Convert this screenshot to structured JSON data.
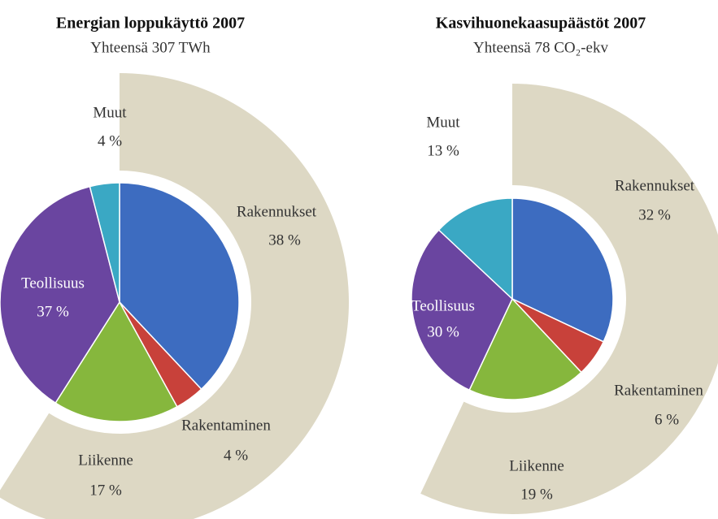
{
  "chart_data": [
    {
      "type": "pie",
      "title": "Energian loppukäyttö 2007",
      "subtitle": "Yhteensä 307 TWh",
      "categories": [
        "Rakennukset",
        "Rakentaminen",
        "Liikenne",
        "Teollisuus",
        "Muut"
      ],
      "values": [
        38,
        4,
        17,
        37,
        4
      ],
      "value_labels": [
        "38 %",
        "4 %",
        "17 %",
        "37 %",
        "4 %"
      ],
      "colors": [
        "#3d6cc0",
        "#c8413a",
        "#86b73d",
        "#6a45a0",
        "#3aa8c4"
      ]
    },
    {
      "type": "pie",
      "title": "Kasvihuonekaasupäästöt 2007",
      "subtitle": "Yhteensä 78 CO₂-ekv",
      "categories": [
        "Rakennukset",
        "Rakentaminen",
        "Liikenne",
        "Teollisuus",
        "Muut"
      ],
      "values": [
        32,
        6,
        19,
        30,
        13
      ],
      "value_labels": [
        "32 %",
        "6 %",
        "19 %",
        "30 %",
        "13 %"
      ],
      "colors": [
        "#3d6cc0",
        "#c8413a",
        "#86b73d",
        "#6a45a0",
        "#3aa8c4"
      ]
    }
  ]
}
